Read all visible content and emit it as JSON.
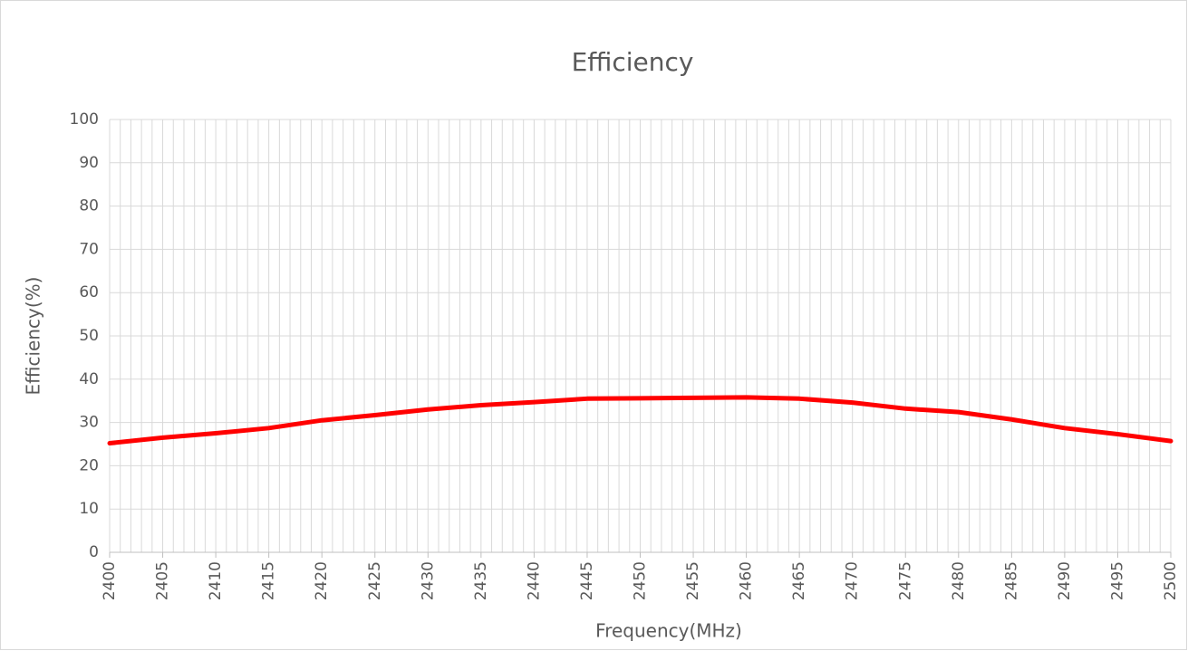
{
  "chart_data": {
    "type": "line",
    "title": "Efficiency",
    "xlabel": "Frequency(MHz)",
    "ylabel": "Efficiency(%)",
    "x": [
      2400,
      2405,
      2410,
      2415,
      2420,
      2425,
      2430,
      2435,
      2440,
      2445,
      2450,
      2455,
      2460,
      2465,
      2470,
      2475,
      2480,
      2485,
      2490,
      2495,
      2500
    ],
    "series": [
      {
        "name": "Efficiency",
        "color": "#ff0000",
        "values": [
          25.2,
          26.5,
          27.5,
          28.7,
          30.5,
          31.7,
          33,
          34,
          34.7,
          35.5,
          35.6,
          35.7,
          35.8,
          35.5,
          34.6,
          33.2,
          32.4,
          30.7,
          28.7,
          27.3,
          25.7
        ]
      }
    ],
    "xlim": [
      2400,
      2500
    ],
    "ylim": [
      0,
      100
    ],
    "xticks": [
      2400,
      2405,
      2410,
      2415,
      2420,
      2425,
      2430,
      2435,
      2440,
      2445,
      2450,
      2455,
      2460,
      2465,
      2470,
      2475,
      2480,
      2485,
      2490,
      2495,
      2500
    ],
    "xminorticks": [
      2400,
      2401,
      2402,
      2403,
      2404,
      2405,
      2406,
      2407,
      2408,
      2409,
      2410,
      2411,
      2412,
      2413,
      2414,
      2415,
      2416,
      2417,
      2418,
      2419,
      2420,
      2421,
      2422,
      2423,
      2424,
      2425,
      2426,
      2427,
      2428,
      2429,
      2430,
      2431,
      2432,
      2433,
      2434,
      2435,
      2436,
      2437,
      2438,
      2439,
      2440,
      2441,
      2442,
      2443,
      2444,
      2445,
      2446,
      2447,
      2448,
      2449,
      2450,
      2451,
      2452,
      2453,
      2454,
      2455,
      2456,
      2457,
      2458,
      2459,
      2460,
      2461,
      2462,
      2463,
      2464,
      2465,
      2466,
      2467,
      2468,
      2469,
      2470,
      2471,
      2472,
      2473,
      2474,
      2475,
      2476,
      2477,
      2478,
      2479,
      2480,
      2481,
      2482,
      2483,
      2484,
      2485,
      2486,
      2487,
      2488,
      2489,
      2490,
      2491,
      2492,
      2493,
      2494,
      2495,
      2496,
      2497,
      2498,
      2499,
      2500
    ],
    "yticks": [
      0,
      10,
      20,
      30,
      40,
      50,
      60,
      70,
      80,
      90,
      100
    ],
    "grid": true
  }
}
